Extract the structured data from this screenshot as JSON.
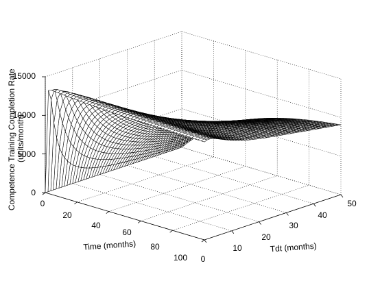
{
  "chart_data": {
    "type": "surface",
    "zlabel": "Competence Training Completion Rate\n(units/month)",
    "xlabel": "Tdt (months)",
    "ylabel": "Time (months)",
    "x_range": [
      0,
      50
    ],
    "y_range": [
      0,
      100
    ],
    "z_range": [
      0,
      15000
    ],
    "x_ticks": [
      "0",
      "10",
      "20",
      "30",
      "40",
      "50"
    ],
    "y_ticks": [
      "0",
      "20",
      "40",
      "60",
      "80",
      "100"
    ],
    "z_ticks": [
      "0",
      "5000",
      "10000",
      "15000"
    ],
    "grid": true,
    "grid_step": {
      "x": 1,
      "y": 2
    },
    "colors": {
      "mesh_edge": "#000000",
      "mesh_face": "#ffffff"
    }
  }
}
